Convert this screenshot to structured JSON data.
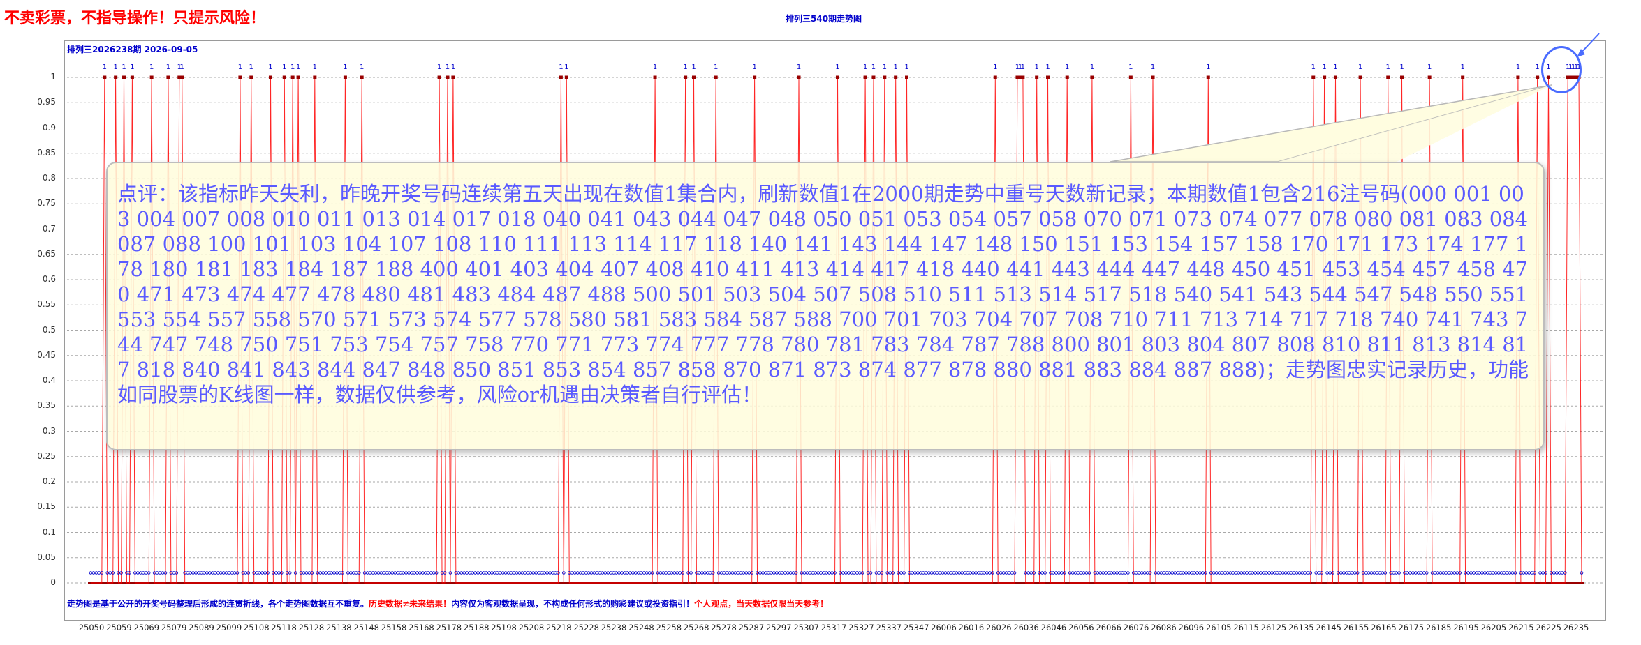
{
  "header": {
    "warning": "不卖彩票，不指导操作！只提示风险！",
    "chart_title": "排列三540期走势图",
    "period_label": "排列三2026238期  2026-09-05"
  },
  "footer": {
    "note_blue": "走势图是基于公开的开奖号码整理后形成的连贯折线，各个走势图数据互不重复。",
    "note_red": "历史数据≠未来结果！",
    "note_blue2": "内容仅为客观数据呈现，不构成任何形式的购彩建议或投资指引！",
    "note_red2": "个人观点，当天数据仅限当天参考！"
  },
  "comment": {
    "text": "点评：该指标昨天失利，昨晚开奖号码连续第五天出现在数值1集合内，刷新数值1在2000期走势中重号天数新记录；本期数值1包含216注号码(000 001 003 004 007 008 010 011 013 014 017 018 040 041 043 044 047 048 050 051 053 054 057 058 070 071 073 074 077 078 080 081 083 084 087 088 100 101 103 104 107 108 110 111 113 114 117 118 140 141 143 144 147 148 150 151 153 154 157 158 170 171 173 174 177 178 180 181 183 184 187 188 400 401 403 404 407 408 410 411 413 414 417 418 440 441 443 444 447 448 450 451 453 454 457 458 470 471 473 474 477 478 480 481 483 484 487 488 500 501 503 504 507 508 510 511 513 514 517 518 540 541 543 544 547 548 550 551 553 554 557 558 570 571 573 574 577 578 580 581 583 584 587 588 700 701 703 704 707 708 710 711 713 714 717 718 740 741 743 744 747 748 750 751 753 754 757 758 770 771 773 774 777 778 780 781 783 784 787 788 800 801 803 804 807 808 810 811 813 814 817 818 840 841 843 844 847 848 850 851 853 854 857 858 870 871 873 874 877 878 880 881 883 884 887 888)；走势图忠实记录历史，功能如同股票的K线图一样，数据仅供参考，风险or机遇由决策者自行评估！"
  },
  "chart_data": {
    "type": "line",
    "title": "排列三540期走势图",
    "ylim": [
      0,
      1
    ],
    "y_ticks": [
      "0",
      "0.05",
      "0.1",
      "0.15",
      "0.2",
      "0.25",
      "0.3",
      "0.35",
      "0.4",
      "0.45",
      "0.5",
      "0.55",
      "0.6",
      "0.65",
      "0.7",
      "0.75",
      "0.8",
      "0.85",
      "0.9",
      "0.95",
      "1"
    ],
    "x_tick_labels": [
      "25050",
      "25059",
      "25069",
      "25079",
      "25089",
      "25099",
      "25108",
      "25118",
      "25128",
      "25138",
      "25148",
      "25158",
      "25168",
      "25178",
      "25188",
      "25198",
      "25208",
      "25218",
      "25228",
      "25238",
      "25248",
      "25258",
      "25268",
      "25278",
      "25287",
      "25297",
      "25307",
      "25317",
      "25327",
      "25337",
      "25347",
      "26006",
      "26016",
      "26026",
      "26036",
      "26046",
      "26056",
      "26066",
      "26076",
      "26086",
      "26096",
      "26105",
      "26115",
      "26125",
      "26135",
      "26145",
      "26155",
      "26165",
      "26175",
      "26185",
      "26195",
      "26205",
      "26215",
      "26225",
      "26235"
    ],
    "grid": true,
    "point_count": 540,
    "ones_indices": [
      5,
      9,
      12,
      15,
      22,
      28,
      32,
      33,
      54,
      58,
      65,
      70,
      73,
      75,
      81,
      92,
      98,
      126,
      129,
      131,
      170,
      172,
      204,
      215,
      218,
      226,
      240,
      256,
      270,
      280,
      283,
      287,
      291,
      295,
      327,
      335,
      336,
      337,
      342,
      346,
      353,
      362,
      376,
      384,
      404,
      442,
      446,
      450,
      459,
      469,
      474,
      484,
      496,
      516,
      523,
      527,
      534,
      535,
      536,
      537,
      538
    ],
    "value_labels": [
      "1"
    ],
    "colors": {
      "line": "#ff0000",
      "marker_low": "#0000cc",
      "marker_high": "#990000",
      "text": "#0000cc"
    }
  }
}
